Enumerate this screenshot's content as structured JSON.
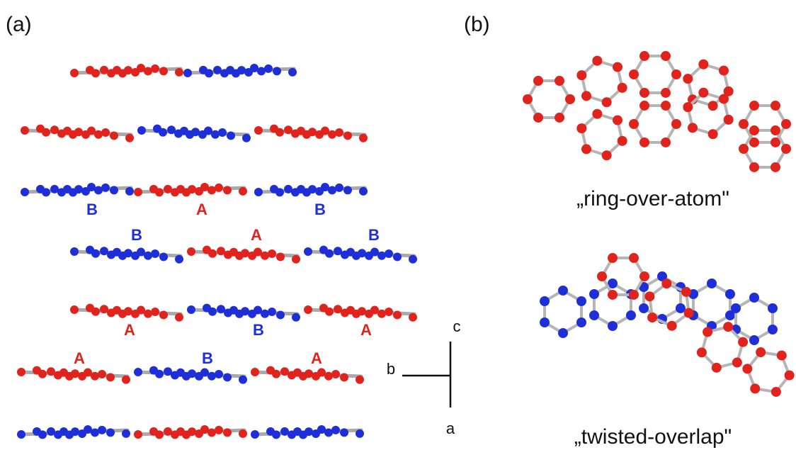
{
  "panel_a": {
    "label": "(a)",
    "layer_labels": [
      [
        "B",
        "A",
        "B"
      ],
      [
        "B",
        "A",
        "B"
      ],
      [
        "A",
        "B",
        "A"
      ],
      [
        "A",
        "B",
        "A"
      ]
    ],
    "axes": [
      "c",
      "b",
      "a"
    ]
  },
  "panel_b": {
    "label": "(b)",
    "captions": [
      "„ring-over-atom\"",
      "„twisted-overlap\""
    ]
  }
}
